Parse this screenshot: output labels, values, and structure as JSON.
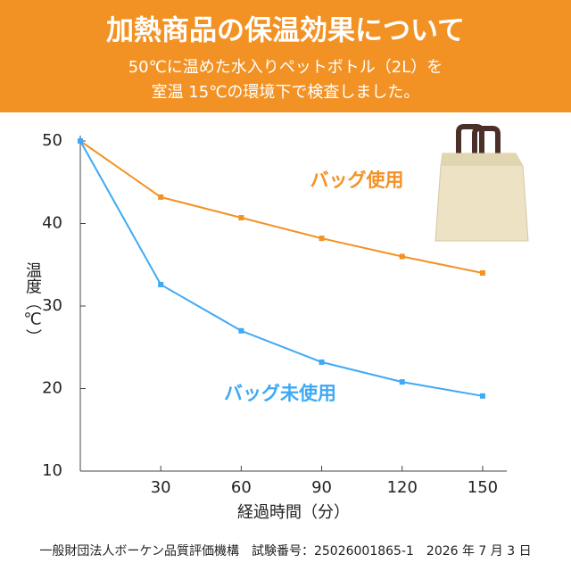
{
  "chart_data": {
    "type": "line",
    "title": "加熱商品の保温効果について",
    "subtitle": [
      "50℃に温めた水入りペットボトル（2L）を",
      "室温 15℃の環境下で検査しました。"
    ],
    "x_label": "経過時間（分）",
    "y_label": "温度（℃）",
    "footer": "一般財団法人ボーケン品質評価機構　試験番号：25026001865-1　2026 年 7 月 3 日",
    "x": [
      0,
      30,
      60,
      90,
      120,
      150
    ],
    "xlim": [
      0,
      159
    ],
    "xticks": [
      30,
      60,
      90,
      120,
      150
    ],
    "ylim": [
      10,
      50
    ],
    "yticks": [
      10,
      20,
      30,
      40,
      50
    ],
    "series": [
      {
        "name": "バッグ使用",
        "color": "#f39224",
        "values": [
          50,
          43.2,
          40.7,
          38.2,
          36,
          34
        ]
      },
      {
        "name": "バッグ未使用",
        "color": "#3fa9f5",
        "values": [
          50,
          32.6,
          27,
          23.2,
          20.8,
          19.1
        ]
      }
    ]
  }
}
